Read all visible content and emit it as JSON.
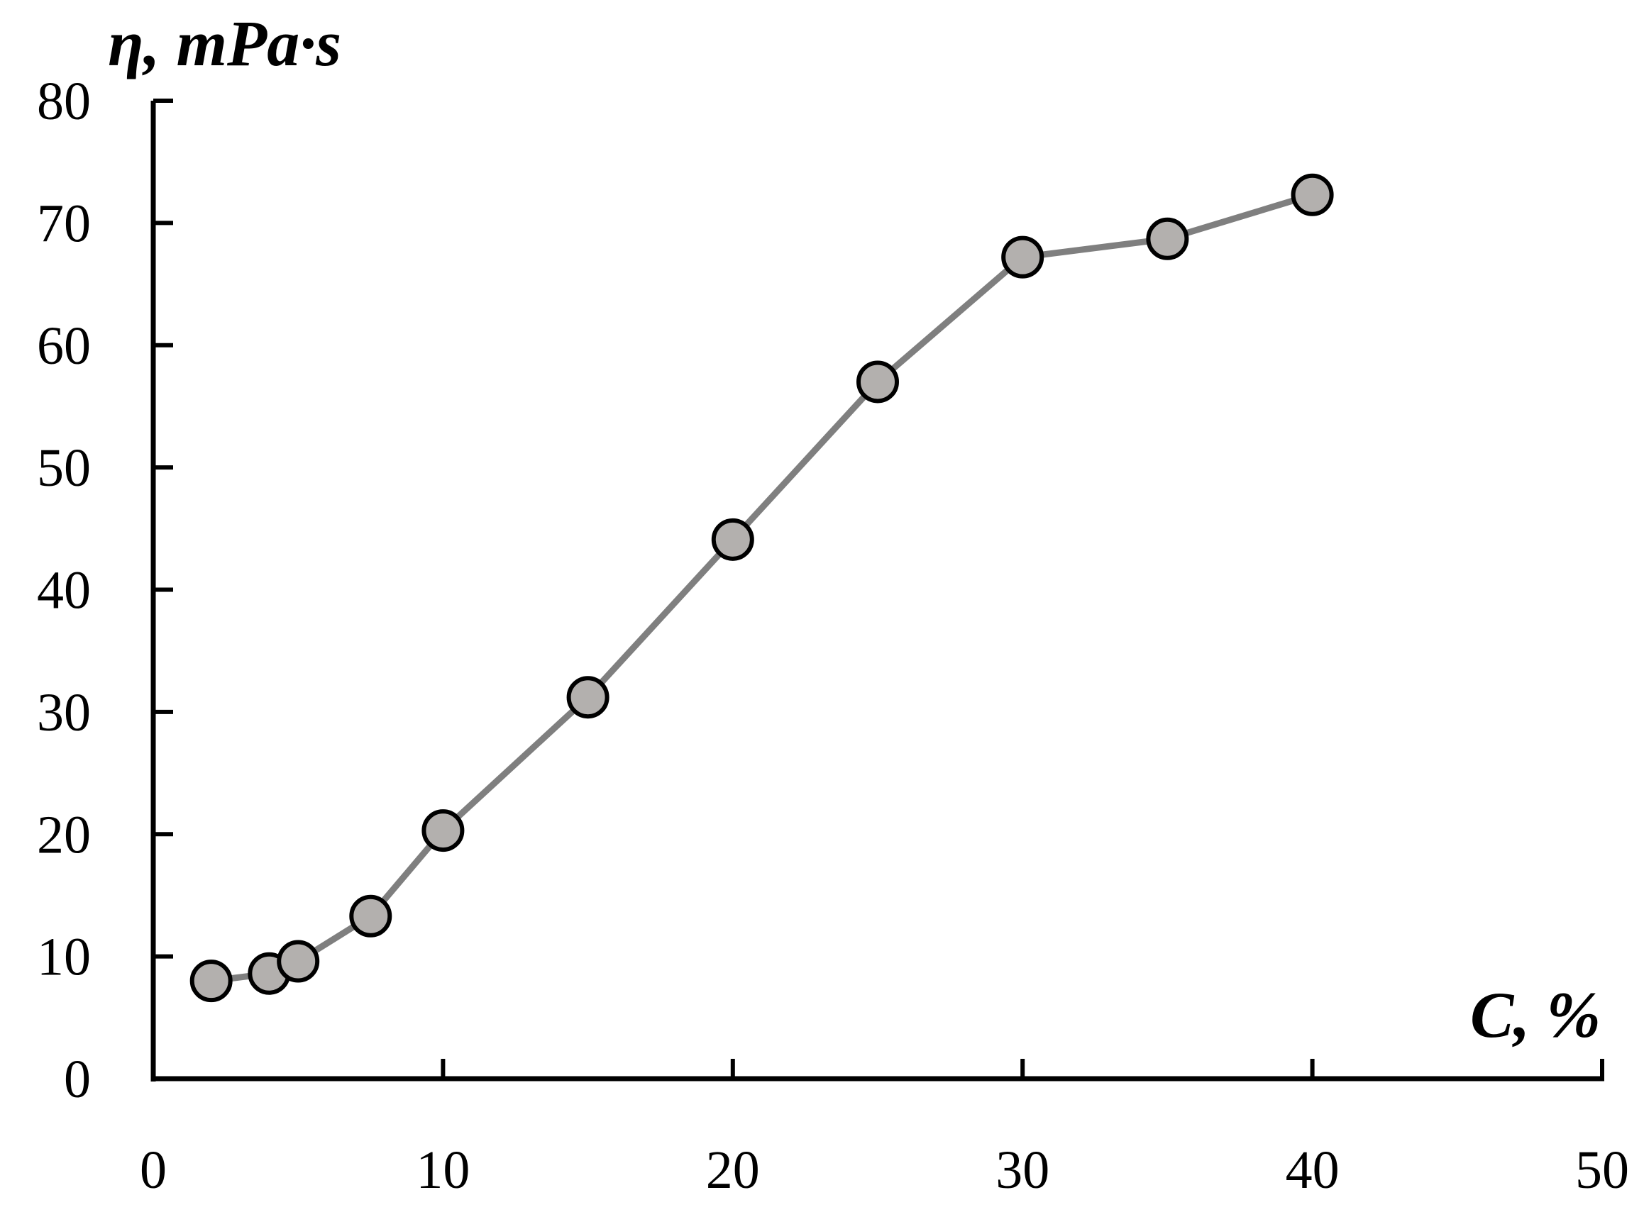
{
  "chart_data": {
    "type": "line",
    "xlabel": "C, %",
    "ylabel": "η, mPa·s",
    "xlim": [
      0,
      50
    ],
    "ylim": [
      0,
      80
    ],
    "x_ticks": [
      0,
      10,
      20,
      30,
      40,
      50
    ],
    "y_ticks": [
      0,
      10,
      20,
      30,
      40,
      50,
      60,
      70,
      80
    ],
    "grid": false,
    "series": [
      {
        "x": [
          2,
          4,
          5,
          7.5,
          10,
          15,
          20,
          25,
          30,
          35,
          40
        ],
        "y": [
          8.0,
          8.6,
          9.6,
          13.3,
          20.3,
          31.2,
          44.1,
          57.0,
          67.2,
          68.7,
          72.3
        ]
      }
    ],
    "colors": {
      "line": "#7f7f7f",
      "marker_fill": "#b3b0ae",
      "marker_stroke": "#000000",
      "axis": "#000000"
    }
  }
}
